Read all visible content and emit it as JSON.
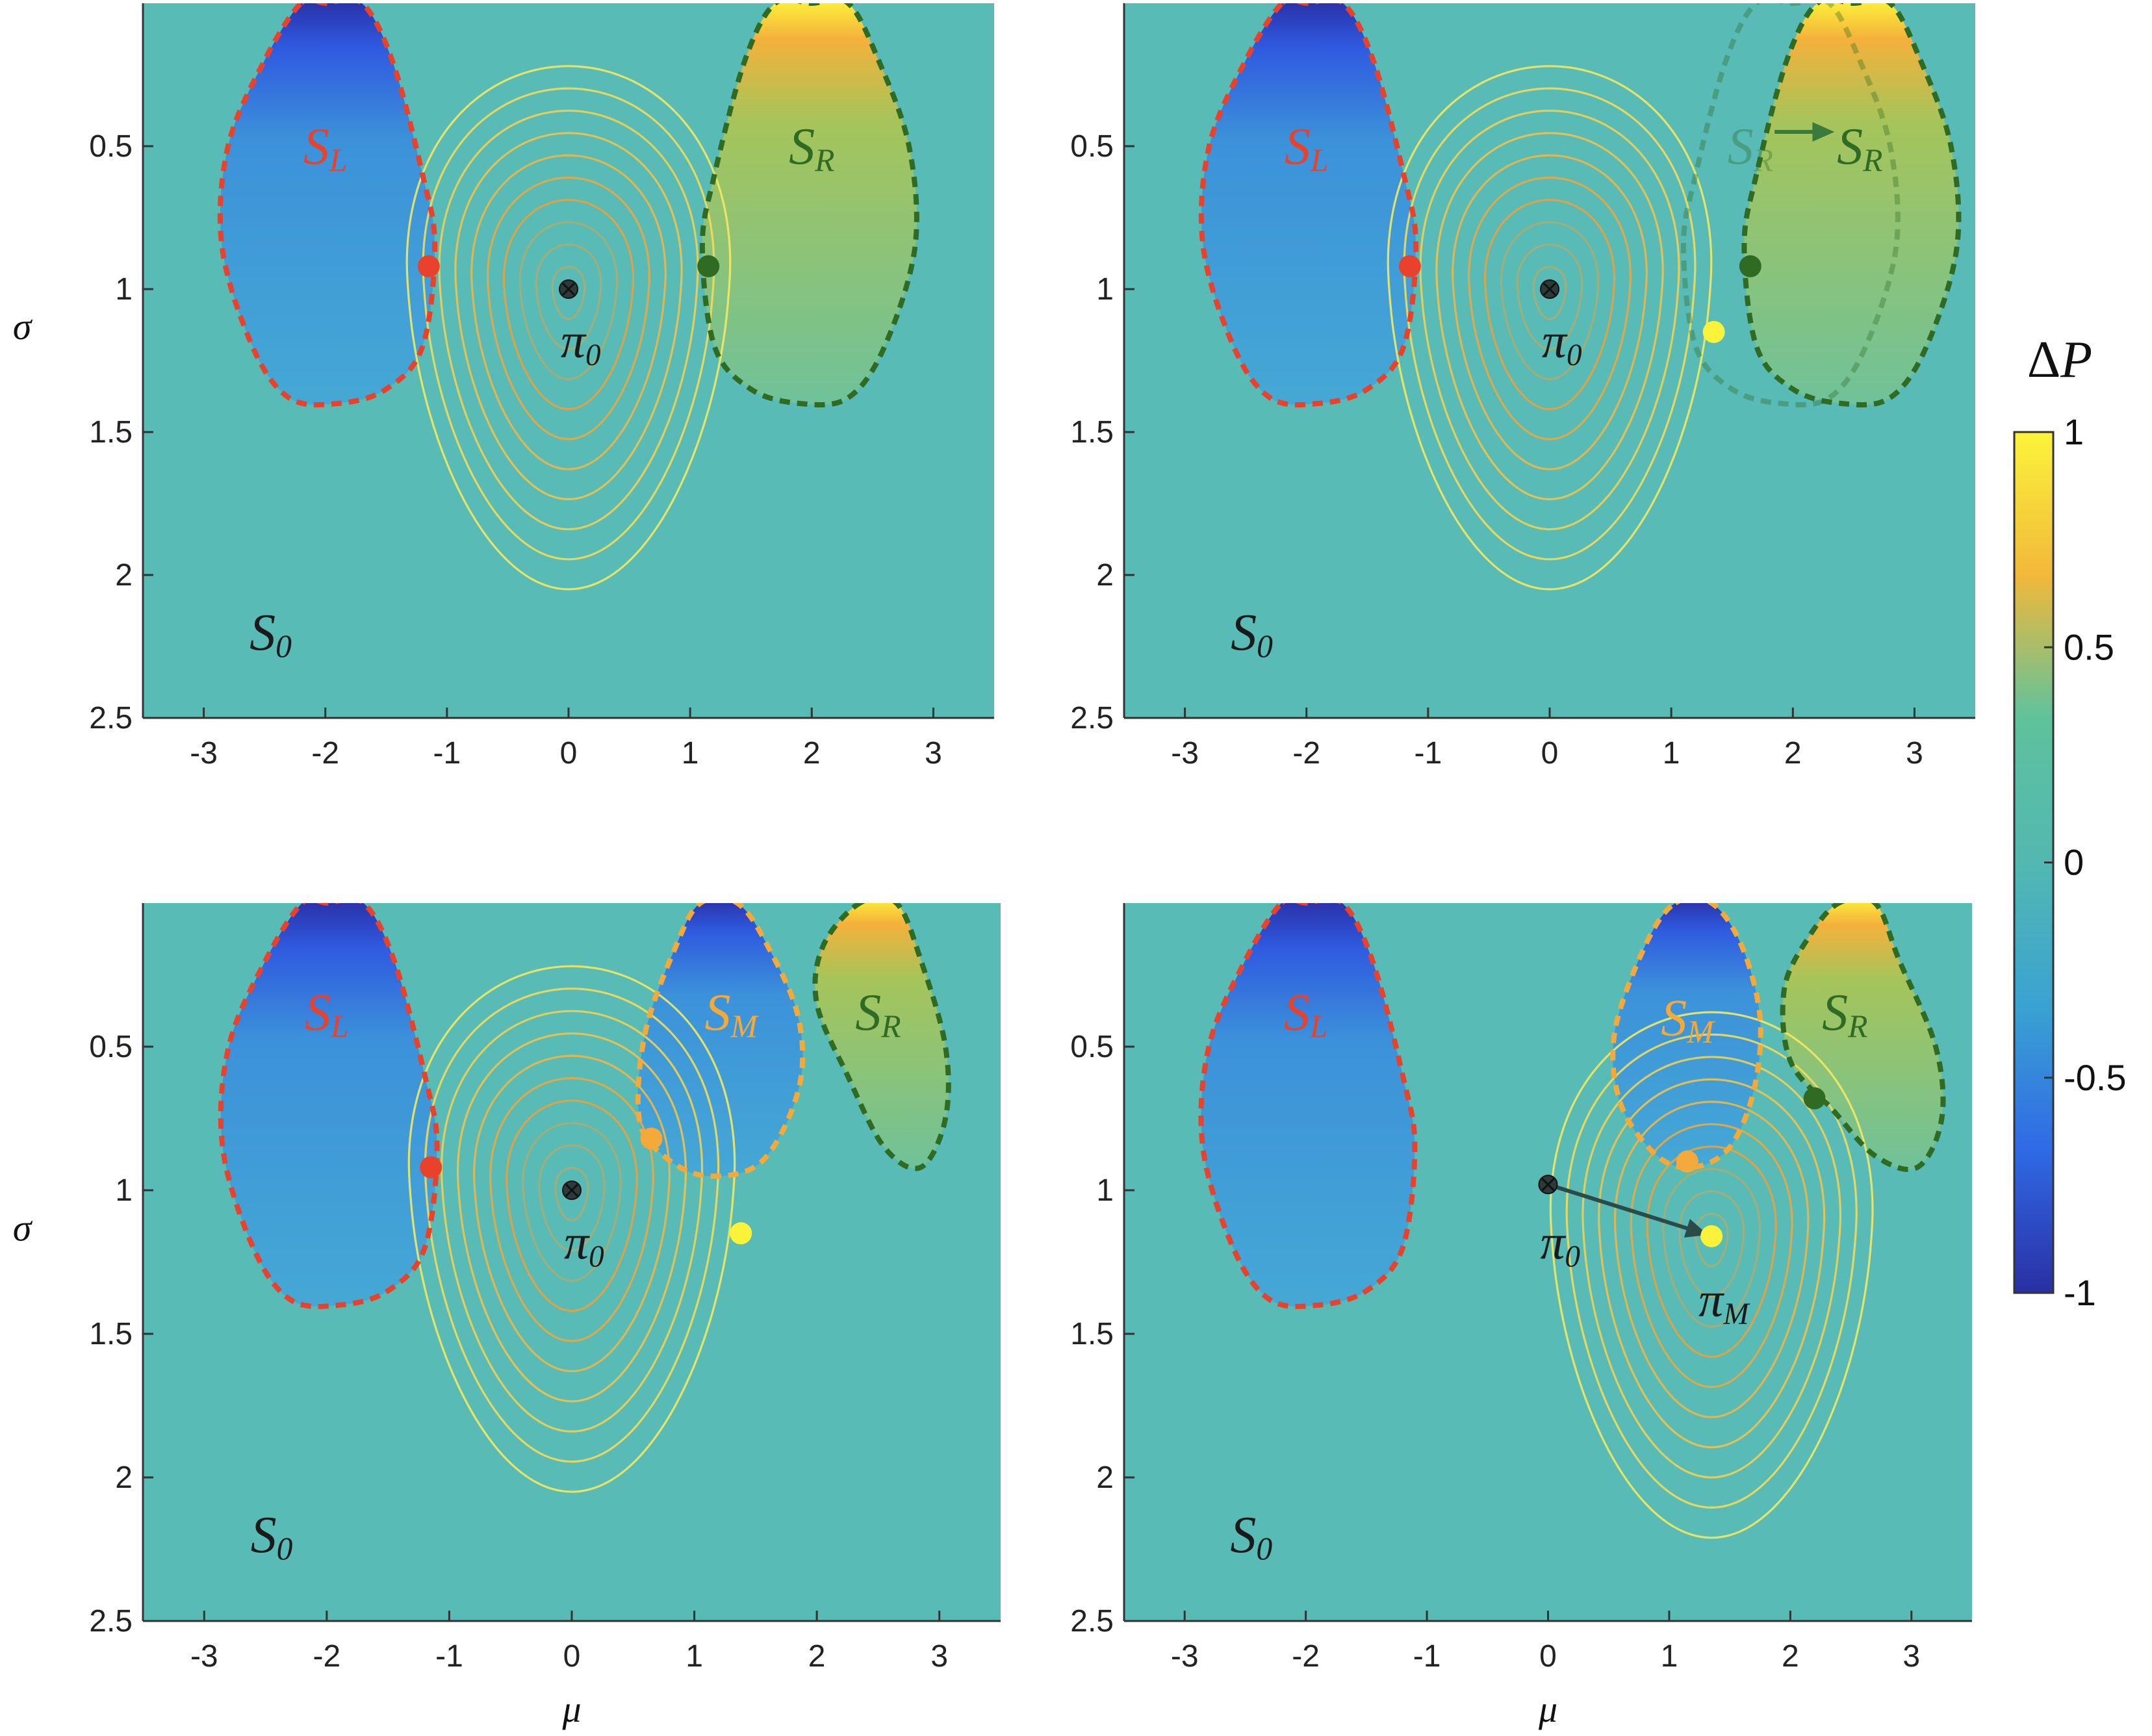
{
  "colors": {
    "background": "#58bbb5",
    "red": "#e8412c",
    "green": "#2f6b22",
    "orange": "#f4a93b",
    "yellow": "#fbf33a",
    "black": "#1a1a1a",
    "contour_outer": "#f5e960",
    "contour_inner": "#e8a23f"
  },
  "colorbar": {
    "title": "ΔP",
    "ticks": [
      1,
      0.5,
      0,
      -0.5,
      -1
    ],
    "colors": [
      "#fbf33a",
      "#f2b83a",
      "#5ec29c",
      "#52b8b1",
      "#3aa2d2",
      "#2f6ae6",
      "#2a2fa4"
    ]
  },
  "chart_data": [
    {
      "type": "heatmap",
      "panel": "top-left",
      "xlabel": "",
      "ylabel": "σ",
      "xlim": [
        -3.5,
        3.5
      ],
      "ylim": [
        0.0,
        2.5
      ],
      "y_reversed": true,
      "xticks": [
        -3,
        -2,
        -1,
        0,
        1,
        2,
        3
      ],
      "yticks": [
        0.5,
        1,
        1.5,
        2,
        2.5
      ],
      "regions": [
        {
          "name": "S_L",
          "sign": -1,
          "color": "red",
          "boundary": [
            [
              -2.2,
              0.0
            ],
            [
              -2.0,
              0.0
            ],
            [
              -1.7,
              0.0
            ],
            [
              -1.45,
              0.2
            ],
            [
              -1.2,
              0.6
            ],
            [
              -1.1,
              0.85
            ],
            [
              -1.2,
              1.2
            ],
            [
              -1.5,
              1.35
            ],
            [
              -1.9,
              1.4
            ],
            [
              -2.3,
              1.38
            ],
            [
              -2.6,
              1.2
            ],
            [
              -2.85,
              0.85
            ],
            [
              -2.8,
              0.5
            ],
            [
              -2.5,
              0.2
            ]
          ]
        },
        {
          "name": "S_R",
          "sign": 1,
          "color": "green",
          "boundary": [
            [
              1.7,
              0.0
            ],
            [
              2.0,
              0.0
            ],
            [
              2.3,
              0.0
            ],
            [
              2.55,
              0.2
            ],
            [
              2.8,
              0.5
            ],
            [
              2.85,
              0.85
            ],
            [
              2.6,
              1.2
            ],
            [
              2.3,
              1.38
            ],
            [
              1.9,
              1.4
            ],
            [
              1.5,
              1.35
            ],
            [
              1.2,
              1.2
            ],
            [
              1.1,
              0.85
            ],
            [
              1.2,
              0.6
            ],
            [
              1.45,
              0.2
            ]
          ]
        }
      ],
      "labels": [
        {
          "main": "S",
          "sub": "L",
          "x": -2.0,
          "y": 0.52,
          "color": "red"
        },
        {
          "main": "S",
          "sub": "R",
          "x": 2.0,
          "y": 0.52,
          "color": "green"
        },
        {
          "main": "S",
          "sub": "0",
          "x": -2.45,
          "y": 2.22,
          "color": "black"
        },
        {
          "main": "π",
          "sub": "0",
          "x": 0.1,
          "y": 1.2,
          "color": "black"
        }
      ],
      "points": [
        {
          "x": -1.15,
          "y": 0.92,
          "color": "red"
        },
        {
          "x": 1.15,
          "y": 0.92,
          "color": "green"
        },
        {
          "x": 0.0,
          "y": 1.0,
          "color": "black",
          "marker": "cross"
        }
      ],
      "contours": {
        "mu": 0.0,
        "sigma": 1.0
      },
      "arrows": []
    },
    {
      "type": "heatmap",
      "panel": "top-right",
      "xlabel": "",
      "ylabel": "",
      "xlim": [
        -3.5,
        3.5
      ],
      "ylim": [
        0.0,
        2.5
      ],
      "y_reversed": true,
      "xticks": [
        -3,
        -2,
        -1,
        0,
        1,
        2,
        3
      ],
      "yticks": [
        0.5,
        1,
        1.5,
        2,
        2.5
      ],
      "regions": [
        {
          "name": "S_L",
          "sign": -1,
          "color": "red",
          "boundary": [
            [
              -2.2,
              0.0
            ],
            [
              -2.0,
              0.0
            ],
            [
              -1.7,
              0.0
            ],
            [
              -1.45,
              0.2
            ],
            [
              -1.2,
              0.6
            ],
            [
              -1.1,
              0.85
            ],
            [
              -1.2,
              1.2
            ],
            [
              -1.5,
              1.35
            ],
            [
              -1.9,
              1.4
            ],
            [
              -2.3,
              1.38
            ],
            [
              -2.6,
              1.2
            ],
            [
              -2.85,
              0.85
            ],
            [
              -2.8,
              0.5
            ],
            [
              -2.5,
              0.2
            ]
          ]
        },
        {
          "name": "S_R_old",
          "sign": 0,
          "color": "green",
          "faded": true,
          "boundary": [
            [
              1.7,
              0.0
            ],
            [
              2.0,
              0.0
            ],
            [
              2.3,
              0.0
            ],
            [
              2.55,
              0.2
            ],
            [
              2.8,
              0.5
            ],
            [
              2.85,
              0.85
            ],
            [
              2.6,
              1.2
            ],
            [
              2.3,
              1.38
            ],
            [
              1.9,
              1.4
            ],
            [
              1.5,
              1.35
            ],
            [
              1.2,
              1.2
            ],
            [
              1.1,
              0.85
            ],
            [
              1.2,
              0.6
            ],
            [
              1.45,
              0.2
            ]
          ]
        },
        {
          "name": "S_R",
          "sign": 1,
          "color": "green",
          "boundary": [
            [
              2.2,
              0.0
            ],
            [
              2.5,
              0.0
            ],
            [
              2.8,
              0.0
            ],
            [
              3.05,
              0.2
            ],
            [
              3.3,
              0.5
            ],
            [
              3.35,
              0.85
            ],
            [
              3.1,
              1.2
            ],
            [
              2.8,
              1.38
            ],
            [
              2.4,
              1.4
            ],
            [
              2.0,
              1.35
            ],
            [
              1.7,
              1.2
            ],
            [
              1.6,
              0.85
            ],
            [
              1.7,
              0.6
            ],
            [
              1.95,
              0.2
            ]
          ]
        }
      ],
      "labels": [
        {
          "main": "S",
          "sub": "L",
          "x": -2.0,
          "y": 0.52,
          "color": "red"
        },
        {
          "main": "S",
          "sub": "R",
          "x": 1.65,
          "y": 0.52,
          "color": "green",
          "faded": true
        },
        {
          "main": "S",
          "sub": "R",
          "x": 2.55,
          "y": 0.52,
          "color": "green"
        },
        {
          "main": "S",
          "sub": "0",
          "x": -2.45,
          "y": 2.22,
          "color": "black"
        },
        {
          "main": "π",
          "sub": "0",
          "x": 0.1,
          "y": 1.2,
          "color": "black"
        }
      ],
      "points": [
        {
          "x": -1.15,
          "y": 0.92,
          "color": "red"
        },
        {
          "x": 1.65,
          "y": 0.92,
          "color": "green"
        },
        {
          "x": 1.35,
          "y": 1.15,
          "color": "yellow"
        },
        {
          "x": 0.0,
          "y": 1.0,
          "color": "black",
          "marker": "cross"
        }
      ],
      "contours": {
        "mu": 0.0,
        "sigma": 1.0
      },
      "arrows": [
        {
          "from": [
            1.85,
            0.45
          ],
          "to": [
            2.3,
            0.45
          ],
          "color": "green"
        }
      ]
    },
    {
      "type": "heatmap",
      "panel": "bottom-left",
      "xlabel": "μ",
      "ylabel": "σ",
      "xlim": [
        -3.5,
        3.5
      ],
      "ylim": [
        0.0,
        2.5
      ],
      "y_reversed": true,
      "xticks": [
        -3,
        -2,
        -1,
        0,
        1,
        2,
        3
      ],
      "yticks": [
        0.5,
        1,
        1.5,
        2,
        2.5
      ],
      "regions": [
        {
          "name": "S_L",
          "sign": -1,
          "color": "red",
          "boundary": [
            [
              -2.2,
              0.0
            ],
            [
              -2.0,
              0.0
            ],
            [
              -1.7,
              0.0
            ],
            [
              -1.45,
              0.2
            ],
            [
              -1.2,
              0.6
            ],
            [
              -1.1,
              0.85
            ],
            [
              -1.2,
              1.2
            ],
            [
              -1.5,
              1.35
            ],
            [
              -1.9,
              1.4
            ],
            [
              -2.3,
              1.38
            ],
            [
              -2.6,
              1.2
            ],
            [
              -2.85,
              0.85
            ],
            [
              -2.8,
              0.5
            ],
            [
              -2.5,
              0.2
            ]
          ]
        },
        {
          "name": "S_M",
          "sign": -1,
          "color": "orange",
          "boundary": [
            [
              1.05,
              0.0
            ],
            [
              1.35,
              0.0
            ],
            [
              1.6,
              0.15
            ],
            [
              1.85,
              0.4
            ],
            [
              1.85,
              0.65
            ],
            [
              1.55,
              0.9
            ],
            [
              1.1,
              0.95
            ],
            [
              0.75,
              0.88
            ],
            [
              0.55,
              0.75
            ],
            [
              0.6,
              0.45
            ],
            [
              0.85,
              0.15
            ]
          ]
        },
        {
          "name": "S_R",
          "sign": 1,
          "color": "green",
          "boundary": [
            [
              2.35,
              0.0
            ],
            [
              2.65,
              0.0
            ],
            [
              2.85,
              0.2
            ],
            [
              3.05,
              0.5
            ],
            [
              3.05,
              0.75
            ],
            [
              2.85,
              0.92
            ],
            [
              2.55,
              0.85
            ],
            [
              2.25,
              0.6
            ],
            [
              2.0,
              0.35
            ],
            [
              2.05,
              0.15
            ]
          ]
        }
      ],
      "labels": [
        {
          "main": "S",
          "sub": "L",
          "x": -2.0,
          "y": 0.4,
          "color": "red"
        },
        {
          "main": "S",
          "sub": "M",
          "x": 1.3,
          "y": 0.4,
          "color": "orange"
        },
        {
          "main": "S",
          "sub": "R",
          "x": 2.5,
          "y": 0.4,
          "color": "green"
        },
        {
          "main": "S",
          "sub": "0",
          "x": -2.45,
          "y": 2.22,
          "color": "black"
        },
        {
          "main": "π",
          "sub": "0",
          "x": 0.1,
          "y": 1.2,
          "color": "black"
        }
      ],
      "points": [
        {
          "x": -1.15,
          "y": 0.92,
          "color": "red"
        },
        {
          "x": 0.65,
          "y": 0.82,
          "color": "orange"
        },
        {
          "x": 1.38,
          "y": 1.15,
          "color": "yellow"
        },
        {
          "x": 0.0,
          "y": 1.0,
          "color": "black",
          "marker": "cross"
        }
      ],
      "contours": {
        "mu": 0.0,
        "sigma": 1.0
      },
      "arrows": []
    },
    {
      "type": "heatmap",
      "panel": "bottom-right",
      "xlabel": "μ",
      "ylabel": "",
      "xlim": [
        -3.5,
        3.5
      ],
      "ylim": [
        0.0,
        2.5
      ],
      "y_reversed": true,
      "xticks": [
        -3,
        -2,
        -1,
        0,
        1,
        2,
        3
      ],
      "yticks": [
        0.5,
        1,
        1.5,
        2,
        2.5
      ],
      "regions": [
        {
          "name": "S_L",
          "sign": -1,
          "color": "red",
          "boundary": [
            [
              -2.2,
              0.0
            ],
            [
              -2.0,
              0.0
            ],
            [
              -1.7,
              0.0
            ],
            [
              -1.45,
              0.2
            ],
            [
              -1.2,
              0.6
            ],
            [
              -1.1,
              0.85
            ],
            [
              -1.2,
              1.2
            ],
            [
              -1.5,
              1.35
            ],
            [
              -1.9,
              1.4
            ],
            [
              -2.3,
              1.38
            ],
            [
              -2.6,
              1.2
            ],
            [
              -2.85,
              0.85
            ],
            [
              -2.8,
              0.5
            ],
            [
              -2.5,
              0.2
            ]
          ]
        },
        {
          "name": "S_M",
          "sign": -1,
          "color": "orange",
          "boundary": [
            [
              1.05,
              0.0
            ],
            [
              1.35,
              0.0
            ],
            [
              1.6,
              0.15
            ],
            [
              1.75,
              0.4
            ],
            [
              1.7,
              0.65
            ],
            [
              1.5,
              0.85
            ],
            [
              1.2,
              0.92
            ],
            [
              0.9,
              0.88
            ],
            [
              0.6,
              0.7
            ],
            [
              0.55,
              0.45
            ],
            [
              0.8,
              0.15
            ]
          ]
        },
        {
          "name": "S_R",
          "sign": 1,
          "color": "green",
          "boundary": [
            [
              2.4,
              0.0
            ],
            [
              2.7,
              0.0
            ],
            [
              2.9,
              0.2
            ],
            [
              3.2,
              0.5
            ],
            [
              3.25,
              0.75
            ],
            [
              3.05,
              0.92
            ],
            [
              2.7,
              0.88
            ],
            [
              2.35,
              0.72
            ],
            [
              2.0,
              0.55
            ],
            [
              1.95,
              0.3
            ],
            [
              2.15,
              0.12
            ]
          ]
        }
      ],
      "labels": [
        {
          "main": "S",
          "sub": "L",
          "x": -2.0,
          "y": 0.4,
          "color": "red"
        },
        {
          "main": "S",
          "sub": "M",
          "x": 1.15,
          "y": 0.42,
          "color": "orange"
        },
        {
          "main": "S",
          "sub": "R",
          "x": 2.45,
          "y": 0.4,
          "color": "green"
        },
        {
          "main": "S",
          "sub": "0",
          "x": -2.45,
          "y": 2.22,
          "color": "black"
        },
        {
          "main": "π",
          "sub": "0",
          "x": 0.1,
          "y": 1.2,
          "color": "black"
        },
        {
          "main": "π",
          "sub": "M",
          "x": 1.45,
          "y": 1.4,
          "color": "black"
        }
      ],
      "points": [
        {
          "x": 2.2,
          "y": 0.68,
          "color": "green"
        },
        {
          "x": 1.15,
          "y": 0.9,
          "color": "orange"
        },
        {
          "x": 1.35,
          "y": 1.16,
          "color": "yellow"
        },
        {
          "x": 0.0,
          "y": 0.98,
          "color": "black",
          "marker": "cross"
        }
      ],
      "contours": {
        "mu": 1.35,
        "sigma": 1.16
      },
      "arrows": [
        {
          "from": [
            0.0,
            0.98
          ],
          "to": [
            1.28,
            1.15
          ],
          "color": "black"
        }
      ]
    }
  ]
}
